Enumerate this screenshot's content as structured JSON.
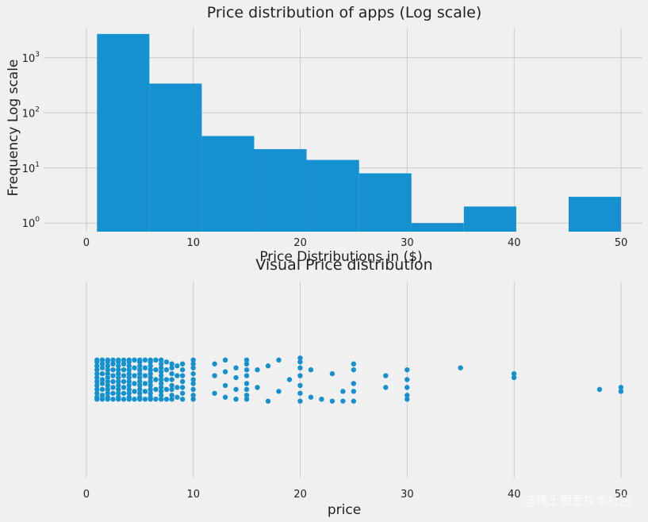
{
  "chart_data": [
    {
      "type": "bar",
      "title": "Price distribution of apps (Log scale)",
      "xlabel": "Price Distributions in ($)",
      "ylabel": "Frequency Log scale",
      "yscale": "log",
      "ylim": [
        0.7,
        3500
      ],
      "xlim": [
        -4,
        52
      ],
      "xticks": [
        0,
        10,
        20,
        30,
        40,
        50
      ],
      "yticks": [
        {
          "base": "10",
          "exp": "0",
          "value": 1
        },
        {
          "base": "10",
          "exp": "1",
          "value": 10
        },
        {
          "base": "10",
          "exp": "2",
          "value": 100
        },
        {
          "base": "10",
          "exp": "3",
          "value": 1000
        }
      ],
      "bins": [
        {
          "x0": 0.99,
          "x1": 5.89,
          "count": 2700
        },
        {
          "x0": 5.89,
          "x1": 10.79,
          "count": 340
        },
        {
          "x0": 10.79,
          "x1": 15.69,
          "count": 38
        },
        {
          "x0": 15.69,
          "x1": 20.59,
          "count": 22
        },
        {
          "x0": 20.59,
          "x1": 25.5,
          "count": 14
        },
        {
          "x0": 25.5,
          "x1": 30.4,
          "count": 8
        },
        {
          "x0": 30.4,
          "x1": 35.3,
          "count": 1
        },
        {
          "x0": 35.3,
          "x1": 40.2,
          "count": 2
        },
        {
          "x0": 40.2,
          "x1": 45.1,
          "count": 0
        },
        {
          "x0": 45.1,
          "x1": 49.99,
          "count": 3
        }
      ],
      "bar_color": "#1591d2",
      "grid": true
    },
    {
      "type": "scatter",
      "title": "Visual Price distribution",
      "xlabel": "price",
      "ylabel": "",
      "xlim": [
        -4,
        52
      ],
      "ylim": [
        -0.5,
        0.5
      ],
      "xticks": [
        0,
        10,
        20,
        30,
        40,
        50
      ],
      "jitter_note": "points are x=price with random vertical jitter",
      "points": [
        {
          "x": 0.99,
          "y": [
            -0.1,
            -0.09,
            -0.07,
            -0.05,
            -0.03,
            -0.01,
            0.01,
            0.03,
            0.05,
            0.07,
            0.09,
            0.1
          ]
        },
        {
          "x": 1.49,
          "y": [
            -0.1,
            -0.08,
            -0.05,
            -0.02,
            0.0,
            0.03,
            0.06,
            0.08,
            0.1
          ]
        },
        {
          "x": 1.99,
          "y": [
            -0.1,
            -0.09,
            -0.07,
            -0.05,
            -0.03,
            -0.01,
            0.01,
            0.03,
            0.05,
            0.07,
            0.09,
            0.1
          ]
        },
        {
          "x": 2.49,
          "y": [
            -0.1,
            -0.07,
            -0.04,
            -0.01,
            0.02,
            0.05,
            0.08,
            0.1
          ]
        },
        {
          "x": 2.99,
          "y": [
            -0.1,
            -0.09,
            -0.07,
            -0.05,
            -0.03,
            -0.01,
            0.01,
            0.03,
            0.05,
            0.07,
            0.09,
            0.1
          ]
        },
        {
          "x": 3.49,
          "y": [
            -0.1,
            -0.07,
            -0.04,
            -0.01,
            0.02,
            0.05,
            0.08,
            0.1
          ]
        },
        {
          "x": 3.99,
          "y": [
            -0.1,
            -0.09,
            -0.07,
            -0.05,
            -0.03,
            -0.01,
            0.01,
            0.03,
            0.05,
            0.07,
            0.09,
            0.1
          ]
        },
        {
          "x": 4.49,
          "y": [
            -0.1,
            -0.06,
            -0.02,
            0.02,
            0.06,
            0.1
          ]
        },
        {
          "x": 4.99,
          "y": [
            -0.1,
            -0.09,
            -0.07,
            -0.05,
            -0.03,
            -0.01,
            0.01,
            0.03,
            0.05,
            0.07,
            0.09,
            0.1
          ]
        },
        {
          "x": 5.49,
          "y": [
            -0.1,
            -0.06,
            -0.02,
            0.02,
            0.06,
            0.1
          ]
        },
        {
          "x": 5.99,
          "y": [
            -0.1,
            -0.09,
            -0.07,
            -0.05,
            -0.03,
            -0.01,
            0.01,
            0.03,
            0.05,
            0.07,
            0.09,
            0.1
          ]
        },
        {
          "x": 6.49,
          "y": [
            -0.1,
            -0.05,
            0.0,
            0.05,
            0.1
          ]
        },
        {
          "x": 6.99,
          "y": [
            -0.1,
            -0.08,
            -0.06,
            -0.04,
            -0.02,
            0.0,
            0.02,
            0.04,
            0.06,
            0.08,
            0.1
          ]
        },
        {
          "x": 7.49,
          "y": [
            -0.1,
            -0.05,
            0.0,
            0.05,
            0.09
          ]
        },
        {
          "x": 7.99,
          "y": [
            -0.1,
            -0.08,
            -0.05,
            -0.03,
            0.0,
            0.03,
            0.06,
            0.08
          ]
        },
        {
          "x": 8.49,
          "y": [
            -0.09,
            -0.04,
            0.02,
            0.07
          ]
        },
        {
          "x": 8.99,
          "y": [
            -0.1,
            -0.07,
            -0.04,
            -0.01,
            0.02,
            0.05,
            0.08
          ]
        },
        {
          "x": 9.99,
          "y": [
            -0.1,
            -0.08,
            -0.05,
            -0.02,
            0.0,
            0.03,
            0.06,
            0.08,
            0.1
          ]
        },
        {
          "x": 11.99,
          "y": [
            -0.07,
            0.02,
            0.08
          ]
        },
        {
          "x": 12.99,
          "y": [
            -0.09,
            -0.03,
            0.04,
            0.1
          ]
        },
        {
          "x": 13.99,
          "y": [
            -0.1,
            -0.05,
            0.01,
            0.06
          ]
        },
        {
          "x": 14.99,
          "y": [
            -0.1,
            -0.08,
            -0.05,
            -0.02,
            0.02,
            0.05,
            0.08,
            0.1
          ]
        },
        {
          "x": 15.99,
          "y": [
            -0.04,
            0.05
          ]
        },
        {
          "x": 16.99,
          "y": [
            -0.11,
            0.07
          ]
        },
        {
          "x": 17.99,
          "y": [
            -0.06,
            0.1
          ]
        },
        {
          "x": 18.99,
          "y": [
            0.0
          ]
        },
        {
          "x": 19.99,
          "y": [
            -0.11,
            -0.07,
            -0.03,
            0.02,
            0.06,
            0.09,
            0.11
          ]
        },
        {
          "x": 20.99,
          "y": [
            -0.09,
            0.05
          ]
        },
        {
          "x": 21.99,
          "y": [
            -0.1
          ]
        },
        {
          "x": 22.99,
          "y": [
            -0.11,
            0.03
          ]
        },
        {
          "x": 23.99,
          "y": [
            -0.11,
            -0.06
          ]
        },
        {
          "x": 24.99,
          "y": [
            -0.11,
            -0.06,
            -0.02,
            0.05,
            0.08
          ]
        },
        {
          "x": 27.99,
          "y": [
            -0.04,
            0.02
          ]
        },
        {
          "x": 29.99,
          "y": [
            -0.1,
            -0.08,
            -0.04,
            0.0,
            0.05
          ]
        },
        {
          "x": 34.99,
          "y": [
            0.06
          ]
        },
        {
          "x": 39.99,
          "y": [
            0.01,
            0.03
          ]
        },
        {
          "x": 47.99,
          "y": [
            -0.05
          ]
        },
        {
          "x": 49.99,
          "y": [
            -0.06,
            -0.04
          ]
        }
      ],
      "marker_color": "#1591d2",
      "grid": true
    }
  ],
  "watermark": "@稀土掘金技术社区"
}
